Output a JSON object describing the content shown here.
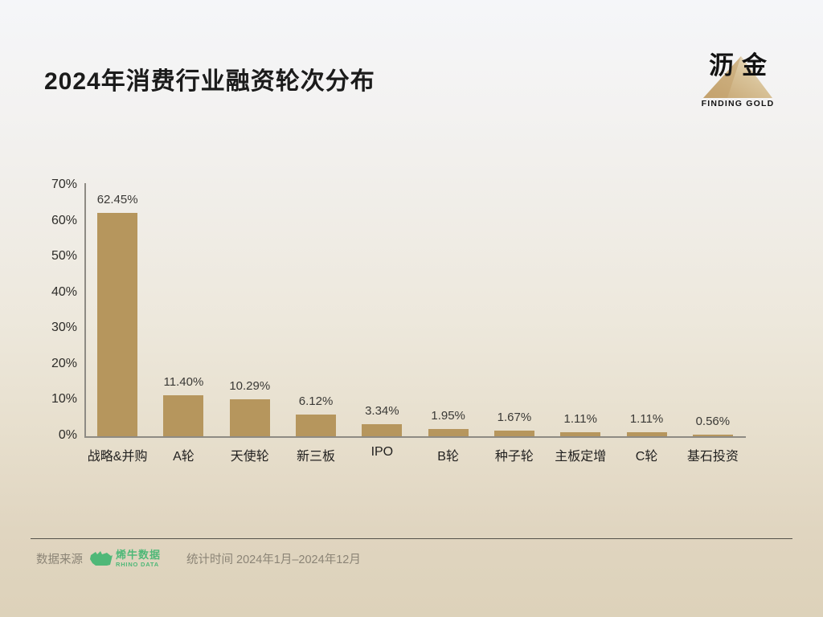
{
  "page": {
    "title": "2024年消费行业融资轮次分布",
    "brand": {
      "name": "沥金",
      "tagline": "FINDING GOLD"
    },
    "footer": {
      "source_label": "数据来源",
      "source_name": "烯牛数据",
      "source_name_en": "RHINO DATA",
      "period_label": "统计时间",
      "period_value": "2024年1月–2024年12月"
    }
  },
  "colors": {
    "bar": "#b6965d",
    "title_text": "#1b1b1b",
    "axis": "#8e8b84",
    "tick_text": "#2d2c29",
    "value_text": "#3a3936",
    "footer_text": "#8b8476",
    "logo_green": "#4fb878",
    "pyramid_dark": "#c4a26e",
    "pyramid_light": "#efe6d1",
    "bg_top": "#f5f6f9",
    "bg_bottom": "#ddd2ba"
  },
  "chart_data": {
    "type": "bar",
    "title": "2024年消费行业融资轮次分布",
    "categories": [
      "战略&并购",
      "A轮",
      "天使轮",
      "新三板",
      "IPO",
      "B轮",
      "种子轮",
      "主板定增",
      "C轮",
      "基石投资"
    ],
    "values": [
      62.45,
      11.4,
      10.29,
      6.12,
      3.34,
      1.95,
      1.67,
      1.11,
      1.11,
      0.56
    ],
    "value_labels": [
      "62.45%",
      "11.40%",
      "10.29%",
      "6.12%",
      "3.34%",
      "1.95%",
      "1.67%",
      "1.11%",
      "1.11%",
      "0.56%"
    ],
    "xlabel": "",
    "ylabel": "",
    "ylim": [
      0,
      70
    ],
    "yticks": [
      0,
      10,
      20,
      30,
      40,
      50,
      60,
      70
    ],
    "ytick_labels": [
      "0%",
      "10%",
      "20%",
      "30%",
      "40%",
      "50%",
      "60%",
      "70%"
    ],
    "grid": false,
    "legend": null,
    "bar_color": "#b6965d"
  }
}
